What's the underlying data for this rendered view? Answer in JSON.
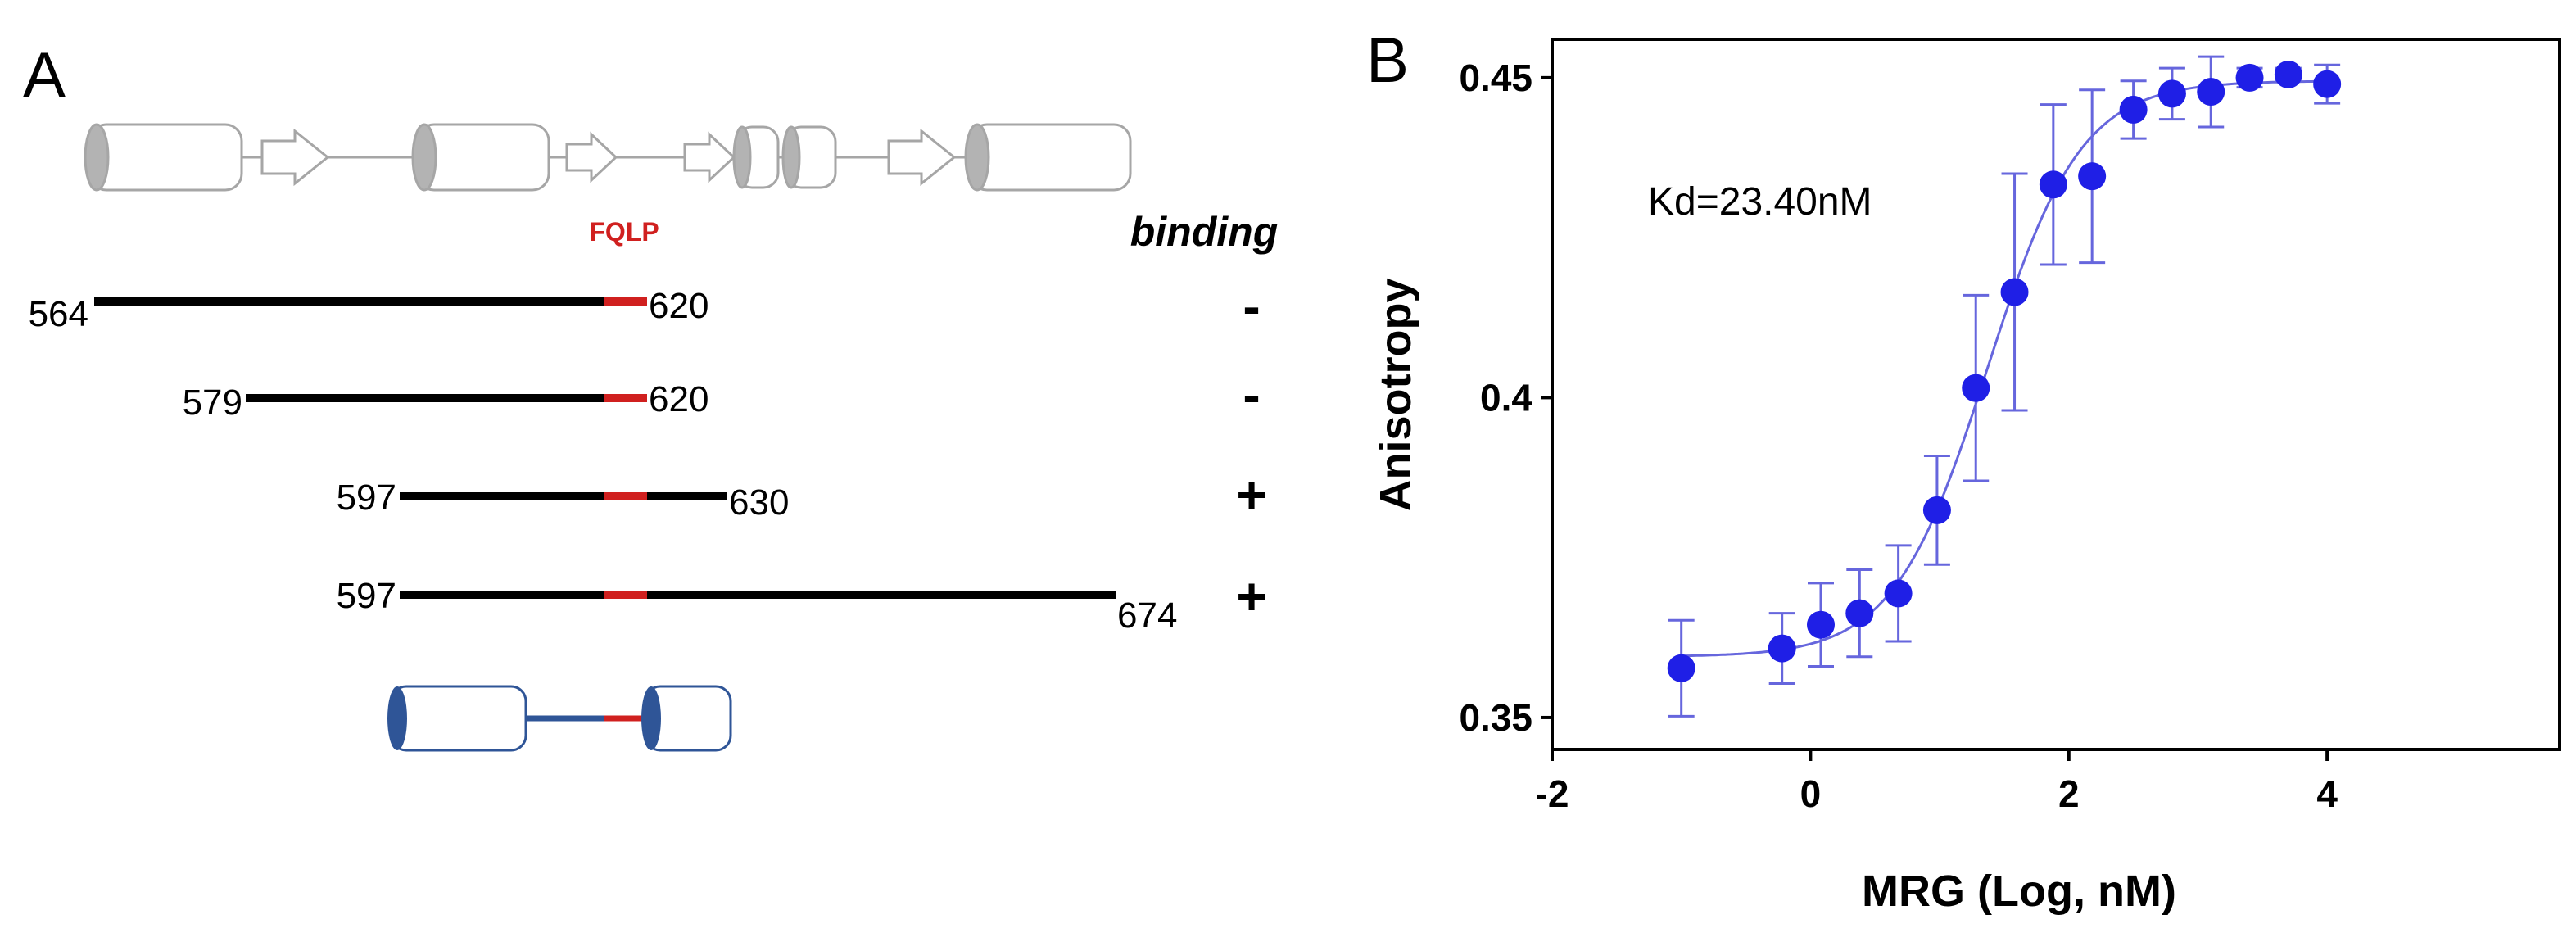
{
  "panelA": {
    "letter": "A",
    "motif_label": "FQLP",
    "binding_header": "binding",
    "constructs": [
      {
        "start": "564",
        "end": "620",
        "binding": "-"
      },
      {
        "start": "579",
        "end": "620",
        "binding": "-"
      },
      {
        "start": "597",
        "end": "630",
        "binding": "+"
      },
      {
        "start": "597",
        "end": "674",
        "binding": "+"
      }
    ],
    "colors": {
      "outline_gray": "#a6a6a6",
      "fill_gray": "#b3b3b3",
      "motif_red": "#d0201f",
      "construct_black": "#000000",
      "model_blue": "#2f5597"
    }
  },
  "panelB": {
    "letter": "B"
  },
  "chart_data": {
    "type": "scatter",
    "title": "",
    "xlabel": "MRG (Log, nM)",
    "ylabel": "Anisotropy",
    "xlim": [
      -2,
      5.8
    ],
    "ylim": [
      0.345,
      0.456
    ],
    "xticks": [
      -2,
      0,
      2,
      4
    ],
    "xtick_labels": [
      "-2",
      "0",
      "2",
      "4"
    ],
    "yticks": [
      0.35,
      0.4,
      0.45
    ],
    "ytick_labels": [
      "0.35",
      "0.4",
      "0.45"
    ],
    "annotation": "Kd=23.40nM",
    "grid": false,
    "color": "#1f1fe6",
    "fit_color": "#6666dd",
    "series": [
      {
        "x": [
          -1.0,
          -0.22,
          0.08,
          0.38,
          0.68,
          0.98,
          1.28,
          1.58,
          1.88,
          2.18,
          2.5,
          2.8,
          3.1,
          3.4,
          3.7,
          4.0
        ],
        "y": [
          0.3577,
          0.3608,
          0.3645,
          0.3663,
          0.3694,
          0.3824,
          0.4015,
          0.4165,
          0.4333,
          0.4346,
          0.445,
          0.4475,
          0.4478,
          0.45,
          0.4505,
          0.449
        ],
        "err": [
          0.0075,
          0.0055,
          0.0065,
          0.0068,
          0.0075,
          0.0085,
          0.0145,
          0.0185,
          0.0125,
          0.0135,
          0.0045,
          0.004,
          0.0055,
          0.0015,
          0.001,
          0.003
        ]
      }
    ],
    "fit": {
      "bottom": 0.3595,
      "top": 0.4495,
      "log_ec50": 1.369,
      "hill": 1.2
    }
  }
}
